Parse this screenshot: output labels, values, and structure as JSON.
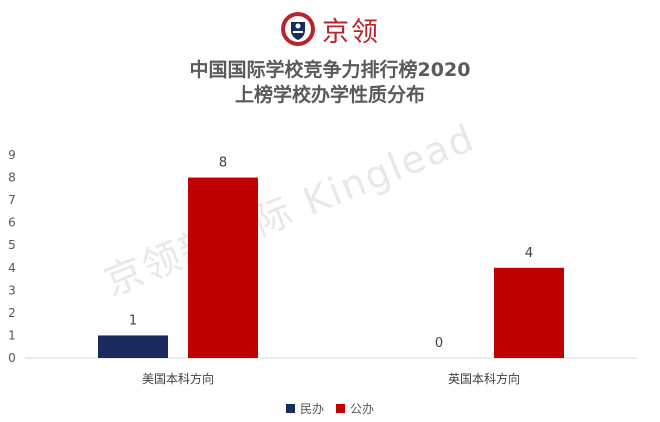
{
  "brand": {
    "name": "京领",
    "logo_icon": "kinglead-shield-logo-icon"
  },
  "watermark": "京领新国际 Kinglead",
  "chart_data": {
    "type": "bar",
    "title_lines": [
      "中国国际学校竞争力排行榜2020",
      "上榜学校办学性质分布"
    ],
    "categories": [
      "美国本科方向",
      "英国本科方向"
    ],
    "series": [
      {
        "name": "民办",
        "color": "#1b2a5c",
        "values": [
          1,
          0
        ]
      },
      {
        "name": "公办",
        "color": "#c00000",
        "values": [
          8,
          4
        ]
      }
    ],
    "ylim": [
      0,
      9
    ],
    "yticks": [
      0,
      1,
      2,
      3,
      4,
      5,
      6,
      7,
      8,
      9
    ],
    "xlabel": "",
    "ylabel": "",
    "legend": "bottom",
    "grid": false,
    "data_labels": true
  }
}
